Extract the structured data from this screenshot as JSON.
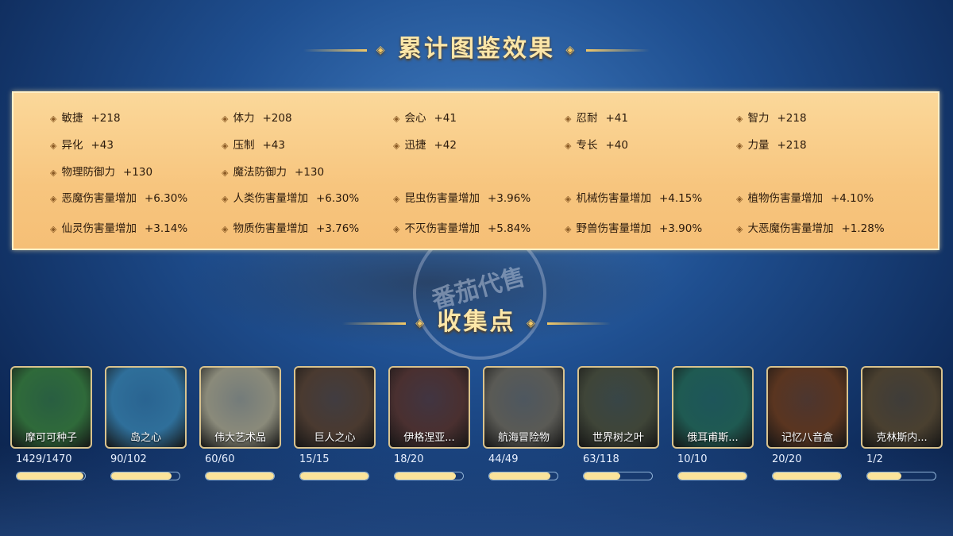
{
  "effects_title": "累计图鉴效果",
  "stats": [
    [
      {
        "name": "敏捷",
        "value": "+218"
      },
      {
        "name": "体力",
        "value": "+208"
      },
      {
        "name": "会心",
        "value": "+41"
      },
      {
        "name": "忍耐",
        "value": "+41"
      },
      {
        "name": "智力",
        "value": "+218"
      }
    ],
    [
      {
        "name": "异化",
        "value": "+43"
      },
      {
        "name": "压制",
        "value": "+43"
      },
      {
        "name": "迅捷",
        "value": "+42"
      },
      {
        "name": "专长",
        "value": "+40"
      },
      {
        "name": "力量",
        "value": "+218"
      }
    ],
    [
      {
        "name": "物理防御力",
        "value": "+130"
      },
      {
        "name": "魔法防御力",
        "value": "+130"
      }
    ],
    [
      {
        "name": "恶魔伤害量增加",
        "value": "+6.30%"
      },
      {
        "name": "人类伤害量增加",
        "value": "+6.30%"
      },
      {
        "name": "昆虫伤害量增加",
        "value": "+3.96%"
      },
      {
        "name": "机械伤害量增加",
        "value": "+4.15%"
      },
      {
        "name": "植物伤害量增加",
        "value": "+4.10%"
      }
    ],
    [
      {
        "name": "仙灵伤害量增加",
        "value": "+3.14%"
      },
      {
        "name": "物质伤害量增加",
        "value": "+3.76%"
      },
      {
        "name": "不灭伤害量增加",
        "value": "+5.84%"
      },
      {
        "name": "野兽伤害量增加",
        "value": "+3.90%"
      },
      {
        "name": "大恶魔伤害量增加",
        "value": "+1.28%"
      }
    ]
  ],
  "collection_title": "收集点",
  "collections": [
    {
      "name": "摩可可种子",
      "count": "1429/1470",
      "progress": 0.972,
      "color": "#2f6a3a"
    },
    {
      "name": "岛之心",
      "count": "90/102",
      "progress": 0.882,
      "color": "#2f6f9a"
    },
    {
      "name": "伟大艺术品",
      "count": "60/60",
      "progress": 1,
      "color": "#8a8a7a"
    },
    {
      "name": "巨人之心",
      "count": "15/15",
      "progress": 1,
      "color": "#4a3a30"
    },
    {
      "name": "伊格涅亚...",
      "count": "18/20",
      "progress": 0.9,
      "color": "#4a3030"
    },
    {
      "name": "航海冒险物",
      "count": "44/49",
      "progress": 0.898,
      "color": "#5a5a55"
    },
    {
      "name": "世界树之叶",
      "count": "63/118",
      "progress": 0.534,
      "color": "#3f4538"
    },
    {
      "name": "俄耳甫斯...",
      "count": "10/10",
      "progress": 1,
      "color": "#1f5a52"
    },
    {
      "name": "记忆八音盒",
      "count": "20/20",
      "progress": 1,
      "color": "#5a3520"
    },
    {
      "name": "克林斯内...",
      "count": "1/2",
      "progress": 0.5,
      "color": "#4a4030"
    }
  ],
  "watermark": "番茄代售"
}
